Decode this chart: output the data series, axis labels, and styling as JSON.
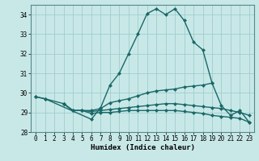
{
  "xlabel": "Humidex (Indice chaleur)",
  "x": [
    0,
    1,
    2,
    3,
    4,
    5,
    6,
    7,
    8,
    9,
    10,
    11,
    12,
    13,
    14,
    15,
    16,
    17,
    18,
    19,
    20,
    21,
    22,
    23
  ],
  "line_main": [
    29.8,
    29.7,
    null,
    null,
    null,
    null,
    28.65,
    29.25,
    30.4,
    31.0,
    32.0,
    33.0,
    34.05,
    34.3,
    34.0,
    34.3,
    33.7,
    32.6,
    32.2,
    30.5,
    null,
    null,
    null,
    null
  ],
  "line_slow": [
    29.8,
    29.7,
    null,
    29.45,
    29.1,
    29.1,
    29.1,
    29.2,
    29.5,
    29.6,
    29.7,
    29.85,
    30.0,
    30.1,
    30.15,
    30.2,
    30.3,
    30.35,
    30.4,
    30.5,
    29.35,
    28.85,
    29.1,
    28.5
  ],
  "line_flat1": [
    null,
    null,
    null,
    29.45,
    29.1,
    29.1,
    29.05,
    29.1,
    29.15,
    29.2,
    29.25,
    29.3,
    29.35,
    29.4,
    29.45,
    29.45,
    29.4,
    29.35,
    29.3,
    29.25,
    29.2,
    29.1,
    29.0,
    28.85
  ],
  "line_flat2": [
    null,
    null,
    null,
    29.45,
    29.1,
    29.1,
    28.95,
    29.0,
    29.0,
    29.05,
    29.1,
    29.1,
    29.1,
    29.1,
    29.1,
    29.1,
    29.05,
    29.0,
    28.95,
    28.85,
    28.8,
    28.75,
    28.7,
    28.5
  ],
  "bg_color": "#c8e8e8",
  "grid_color": "#a0cccc",
  "line_color": "#1a6868",
  "ylim": [
    28.0,
    34.5
  ],
  "yticks": [
    28,
    29,
    30,
    31,
    32,
    33,
    34
  ],
  "xticks": [
    0,
    1,
    2,
    3,
    4,
    5,
    6,
    7,
    8,
    9,
    10,
    11,
    12,
    13,
    14,
    15,
    16,
    17,
    18,
    19,
    20,
    21,
    22,
    23
  ]
}
